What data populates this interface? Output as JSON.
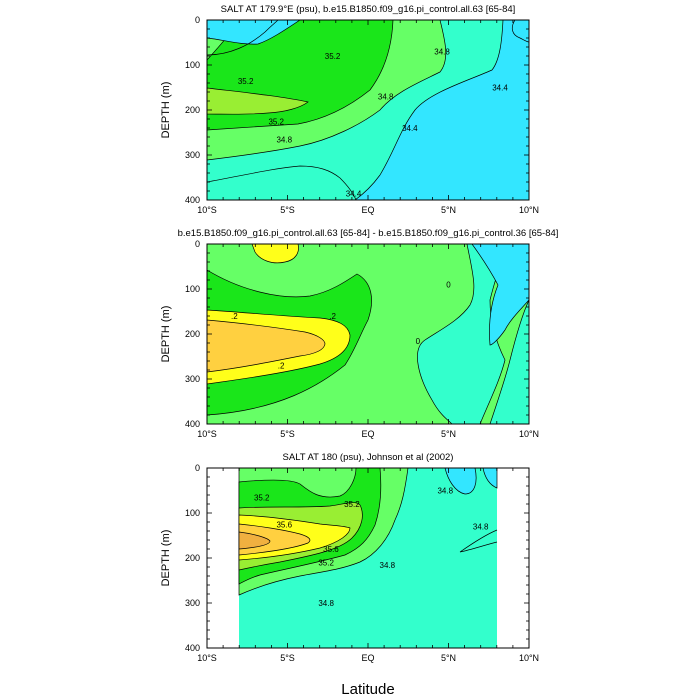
{
  "figure": {
    "xlabel": "Latitude",
    "colors": {
      "cyan": "#33e6ff",
      "aqua": "#33ffcc",
      "lightgreen": "#66ff66",
      "green": "#1ae61a",
      "yellowgreen": "#99ee33",
      "yellow": "#ffff1a",
      "orange": "#ffd040",
      "deeporange": "#f0b040",
      "line": "#000000"
    }
  },
  "chart_data": [
    {
      "type": "contour",
      "title": "SALT AT 179.9°E (psu), b.e15.B1850.f09_g16.pi_control.all.63 [65-84]",
      "xlabel": "",
      "ylabel": "DEPTH (m)",
      "xlim": [
        -10,
        10
      ],
      "ylim": [
        400,
        0
      ],
      "x_ticks": [
        -10,
        -5,
        0,
        5,
        10
      ],
      "x_tick_labels": [
        "10°S",
        "5°S",
        "EQ",
        "5°N",
        "10°N"
      ],
      "y_ticks": [
        0,
        100,
        200,
        300,
        400
      ],
      "y_tick_labels": [
        "0",
        "100",
        "200",
        "300",
        "400"
      ],
      "contour_labels": [
        {
          "text": "35.2",
          "lat": -2.2,
          "depth": 80
        },
        {
          "text": "34.8",
          "lat": 4.6,
          "depth": 70
        },
        {
          "text": "34.4",
          "lat": 8.2,
          "depth": 150
        },
        {
          "text": "35.2",
          "lat": -7.6,
          "depth": 135
        },
        {
          "text": "34.8",
          "lat": 1.1,
          "depth": 170
        },
        {
          "text": "35.2",
          "lat": -5.7,
          "depth": 225
        },
        {
          "text": "34.4",
          "lat": 2.6,
          "depth": 240
        },
        {
          "text": "34.8",
          "lat": -5.2,
          "depth": 265
        },
        {
          "text": "34.4",
          "lat": -0.9,
          "depth": 385
        }
      ]
    },
    {
      "type": "contour",
      "title": "b.e15.B1850.f09_g16.pi_control.all.63 [65-84] - b.e15.B1850.f09_g16.pi_control.36 [65-84]",
      "xlabel": "",
      "ylabel": "DEPTH (m)",
      "xlim": [
        -10,
        10
      ],
      "ylim": [
        400,
        0
      ],
      "x_ticks": [
        -10,
        -5,
        0,
        5,
        10
      ],
      "x_tick_labels": [
        "10°S",
        "5°S",
        "EQ",
        "5°N",
        "10°N"
      ],
      "y_ticks": [
        0,
        100,
        200,
        300,
        400
      ],
      "y_tick_labels": [
        "0",
        "100",
        "200",
        "300",
        "400"
      ],
      "contour_labels": [
        {
          "text": ".2",
          "lat": -8.3,
          "depth": 160
        },
        {
          "text": ".2",
          "lat": -2.2,
          "depth": 160
        },
        {
          "text": ".2",
          "lat": -5.4,
          "depth": 270
        },
        {
          "text": "0",
          "lat": 5.0,
          "depth": 90
        },
        {
          "text": "0",
          "lat": 3.1,
          "depth": 215
        }
      ]
    },
    {
      "type": "contour",
      "title": "SALT AT 180 (psu), Johnson et al (2002)",
      "xlabel": "Latitude",
      "ylabel": "DEPTH (m)",
      "xlim": [
        -10,
        10
      ],
      "ylim": [
        400,
        0
      ],
      "data_extent_lat": [
        -8,
        8
      ],
      "x_ticks": [
        -10,
        -5,
        0,
        5,
        10
      ],
      "x_tick_labels": [
        "10°S",
        "5°S",
        "EQ",
        "5°N",
        "10°N"
      ],
      "y_ticks": [
        0,
        100,
        200,
        300,
        400
      ],
      "y_tick_labels": [
        "0",
        "100",
        "200",
        "300",
        "400"
      ],
      "contour_labels": [
        {
          "text": "35.2",
          "lat": -6.6,
          "depth": 65
        },
        {
          "text": "35.2",
          "lat": -1.0,
          "depth": 80
        },
        {
          "text": "34.8",
          "lat": 4.8,
          "depth": 50
        },
        {
          "text": "35.6",
          "lat": -5.2,
          "depth": 125
        },
        {
          "text": "34.8",
          "lat": 7.0,
          "depth": 130
        },
        {
          "text": "35.6",
          "lat": -2.3,
          "depth": 180
        },
        {
          "text": "35.2",
          "lat": -2.6,
          "depth": 210
        },
        {
          "text": "34.8",
          "lat": 1.2,
          "depth": 215
        },
        {
          "text": "34.8",
          "lat": -2.6,
          "depth": 300
        }
      ]
    }
  ]
}
